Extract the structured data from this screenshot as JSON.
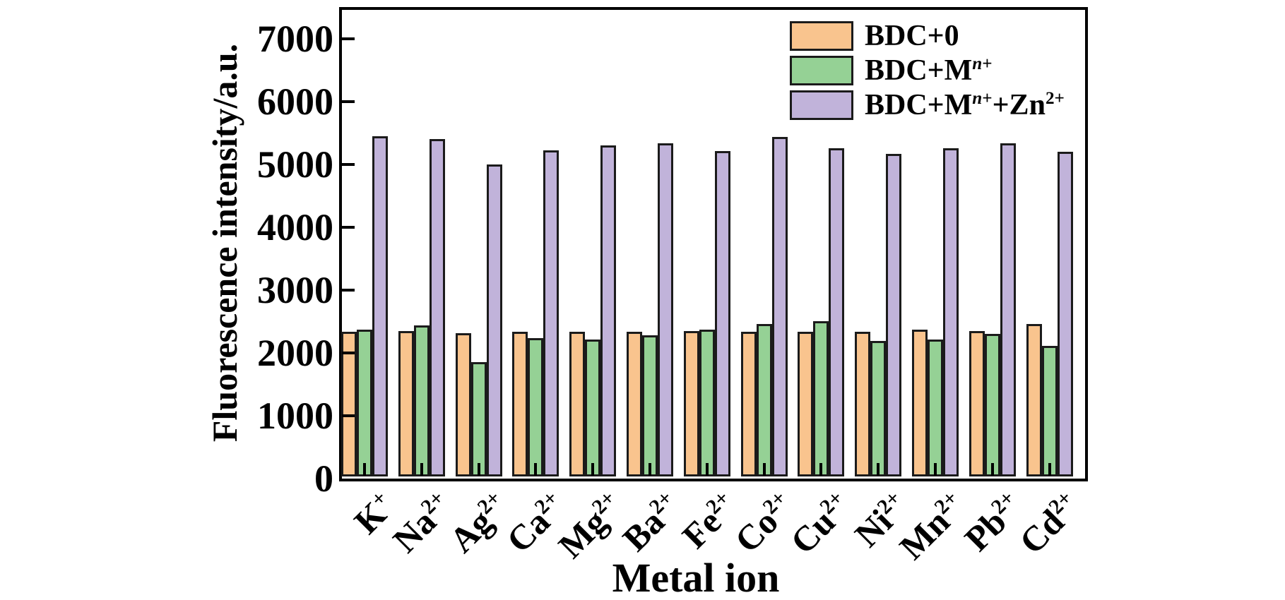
{
  "chart_data": {
    "type": "bar",
    "title": "",
    "xlabel": "Metal ion",
    "ylabel": "Fluorescence intensity/a.u.",
    "ylim": [
      0,
      7500
    ],
    "yticks": [
      0,
      1000,
      2000,
      3000,
      4000,
      5000,
      6000,
      7000
    ],
    "grid": false,
    "legend_position": "top-right-inside",
    "background_color": "#ffffff",
    "axis_color": "#000000",
    "bar_border_color": "#1b1b1b",
    "categories": [
      "K+",
      "Na2+",
      "Ag2+",
      "Ca2+",
      "Mg2+",
      "Ba2+",
      "Fe2+",
      "Co2+",
      "Cu2+",
      "Ni2+",
      "Mn2+",
      "Pb2+",
      "Cd2+"
    ],
    "category_segments": [
      [
        {
          "t": "K"
        },
        {
          "t": "+",
          "sup": true
        }
      ],
      [
        {
          "t": "Na"
        },
        {
          "t": "2+",
          "sup": true
        }
      ],
      [
        {
          "t": "Ag"
        },
        {
          "t": "2+",
          "sup": true
        }
      ],
      [
        {
          "t": "Ca"
        },
        {
          "t": "2+",
          "sup": true
        }
      ],
      [
        {
          "t": "Mg"
        },
        {
          "t": "2+",
          "sup": true
        }
      ],
      [
        {
          "t": "Ba"
        },
        {
          "t": "2+",
          "sup": true
        }
      ],
      [
        {
          "t": "Fe"
        },
        {
          "t": "2+",
          "sup": true
        }
      ],
      [
        {
          "t": "Co"
        },
        {
          "t": "2+",
          "sup": true
        }
      ],
      [
        {
          "t": "Cu"
        },
        {
          "t": "2+",
          "sup": true
        }
      ],
      [
        {
          "t": "Ni"
        },
        {
          "t": "2+",
          "sup": true
        }
      ],
      [
        {
          "t": "Mn"
        },
        {
          "t": "2+",
          "sup": true
        }
      ],
      [
        {
          "t": "Pb"
        },
        {
          "t": "2+",
          "sup": true
        }
      ],
      [
        {
          "t": "Cd"
        },
        {
          "t": "2+",
          "sup": true
        }
      ]
    ],
    "series": [
      {
        "name": "BDC+0",
        "color": "#F9C48E",
        "label_segments": [
          {
            "t": "BDC+0"
          }
        ],
        "values": [
          2340,
          2350,
          2310,
          2340,
          2340,
          2340,
          2350,
          2330,
          2340,
          2340,
          2370,
          2350,
          2460
        ]
      },
      {
        "name": "BDC+Mn+",
        "color": "#95D195",
        "label_segments": [
          {
            "t": "BDC+M"
          },
          {
            "t": "n",
            "sup": true,
            "italic": true
          },
          {
            "t": "+",
            "sup": true
          }
        ],
        "values": [
          2370,
          2440,
          1850,
          2230,
          2210,
          2280,
          2370,
          2460,
          2500,
          2190,
          2210,
          2300,
          2110
        ]
      },
      {
        "name": "BDC+Mn++Zn2+",
        "color": "#C1B3DA",
        "label_segments": [
          {
            "t": "BDC+M"
          },
          {
            "t": "n",
            "sup": true,
            "italic": true
          },
          {
            "t": "+",
            "sup": true
          },
          {
            "t": "+Zn"
          },
          {
            "t": "2+",
            "sup": true
          }
        ],
        "values": [
          5450,
          5400,
          5000,
          5220,
          5300,
          5330,
          5210,
          5430,
          5260,
          5170,
          5260,
          5330,
          5200
        ]
      }
    ]
  }
}
